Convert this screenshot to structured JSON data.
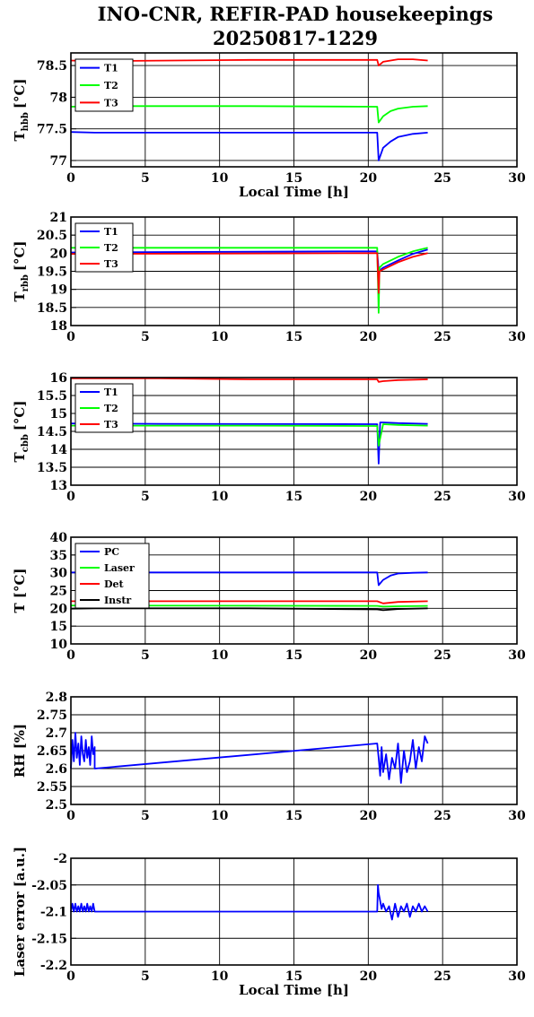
{
  "title_line1": "INO-CNR, REFIR-PAD housekeepings",
  "title_line2": "20250817-1229",
  "chart_data": [
    {
      "type": "line",
      "ylabel_main": "T",
      "ylabel_sub": "hbb",
      "ylabel_unit": "[°C]",
      "xlabel": "Local Time [h]",
      "xlim": [
        0,
        30
      ],
      "ylim": [
        76.9,
        78.7
      ],
      "yticks": [
        77,
        77.5,
        78,
        78.5
      ],
      "ytick_labels": [
        "77",
        "77.5",
        "78",
        "78.5"
      ],
      "xticks": [
        0,
        5,
        10,
        15,
        20,
        25,
        30
      ],
      "legend_position": "top-left",
      "series": [
        {
          "name": "T1",
          "color": "#0000ff",
          "x": [
            0,
            1.6,
            20.6,
            20.7,
            21.0,
            21.5,
            22.0,
            23.0,
            24.0
          ],
          "y": [
            77.45,
            77.44,
            77.44,
            77.0,
            77.2,
            77.3,
            77.37,
            77.42,
            77.44
          ]
        },
        {
          "name": "T2",
          "color": "#00ff00",
          "x": [
            0,
            1.6,
            12.0,
            20.6,
            20.7,
            21.0,
            21.5,
            22.0,
            23.0,
            24.0
          ],
          "y": [
            77.85,
            77.86,
            77.86,
            77.85,
            77.6,
            77.7,
            77.78,
            77.82,
            77.85,
            77.86
          ]
        },
        {
          "name": "T3",
          "color": "#ff0000",
          "x": [
            0,
            1.6,
            12.0,
            20.6,
            20.7,
            21.0,
            22.0,
            23.0,
            24.0
          ],
          "y": [
            78.58,
            78.57,
            78.59,
            78.59,
            78.5,
            78.56,
            78.6,
            78.6,
            78.58
          ]
        }
      ]
    },
    {
      "type": "line",
      "ylabel_main": "T",
      "ylabel_sub": "rbb",
      "ylabel_unit": "[°C]",
      "xlim": [
        0,
        30
      ],
      "ylim": [
        18,
        21
      ],
      "yticks": [
        18,
        18.5,
        19,
        19.5,
        20,
        20.5,
        21
      ],
      "ytick_labels": [
        "18",
        "18.5",
        "19",
        "19.5",
        "20",
        "20.5",
        "21"
      ],
      "xticks": [
        0,
        5,
        10,
        15,
        20,
        25,
        30
      ],
      "legend_position": "top-left",
      "series": [
        {
          "name": "T1",
          "color": "#0000ff",
          "x": [
            0,
            18.0,
            20.6,
            20.7,
            21.0,
            22.0,
            23.0,
            24.0
          ],
          "y": [
            20.02,
            20.05,
            20.05,
            19.5,
            19.6,
            19.8,
            19.98,
            20.1
          ]
        },
        {
          "name": "T2",
          "color": "#00ff00",
          "x": [
            0,
            20.6,
            20.7,
            20.75,
            21.0,
            22.0,
            23.0,
            24.0
          ],
          "y": [
            20.15,
            20.15,
            18.35,
            19.6,
            19.7,
            19.9,
            20.05,
            20.15
          ]
        },
        {
          "name": "T3",
          "color": "#ff0000",
          "x": [
            0,
            20.6,
            20.7,
            20.75,
            21.0,
            22.0,
            23.0,
            24.0
          ],
          "y": [
            19.98,
            20.0,
            18.9,
            19.5,
            19.55,
            19.75,
            19.9,
            20.0
          ]
        }
      ]
    },
    {
      "type": "line",
      "ylabel_main": "T",
      "ylabel_sub": "cbb",
      "ylabel_unit": "[°C]",
      "xlim": [
        0,
        30
      ],
      "ylim": [
        13,
        16
      ],
      "yticks": [
        13,
        13.5,
        14,
        14.5,
        15,
        15.5,
        16
      ],
      "ytick_labels": [
        "13",
        "13.5",
        "14",
        "14.5",
        "15",
        "15.5",
        "16"
      ],
      "xticks": [
        0,
        5,
        10,
        15,
        20,
        25,
        30
      ],
      "legend_position": "top-left",
      "series": [
        {
          "name": "T1",
          "color": "#0000ff",
          "x": [
            0,
            6.0,
            20.6,
            20.7,
            20.8,
            21.0,
            22.0,
            24.0
          ],
          "y": [
            14.72,
            14.71,
            14.7,
            13.6,
            14.75,
            14.75,
            14.73,
            14.71
          ]
        },
        {
          "name": "T2",
          "color": "#00ff00",
          "x": [
            0,
            12.0,
            20.6,
            20.7,
            21.0,
            22.0,
            24.0
          ],
          "y": [
            14.66,
            14.66,
            14.65,
            14.1,
            14.7,
            14.68,
            14.66
          ]
        },
        {
          "name": "T3",
          "color": "#ff0000",
          "x": [
            0,
            6.0,
            12.0,
            20.6,
            20.7,
            21.0,
            22.0,
            24.0
          ],
          "y": [
            15.98,
            15.98,
            15.95,
            15.95,
            15.88,
            15.9,
            15.93,
            15.95
          ]
        }
      ]
    },
    {
      "type": "line",
      "ylabel_main": "T [°C]",
      "xlim": [
        0,
        30
      ],
      "ylim": [
        10,
        40
      ],
      "yticks": [
        10,
        15,
        20,
        25,
        30,
        35,
        40
      ],
      "ytick_labels": [
        "10",
        "15",
        "20",
        "25",
        "30",
        "35",
        "40"
      ],
      "xticks": [
        0,
        5,
        10,
        15,
        20,
        25,
        30
      ],
      "legend_position": "top-left",
      "series": [
        {
          "name": "PC",
          "color": "#0000ff",
          "x": [
            0,
            20.6,
            20.7,
            21.0,
            21.5,
            22.0,
            23.0,
            24.0
          ],
          "y": [
            30.1,
            30.1,
            26.5,
            28.0,
            29.2,
            29.8,
            30.0,
            30.1
          ]
        },
        {
          "name": "Laser",
          "color": "#00ff00",
          "x": [
            0,
            20.6,
            21.0,
            22.0,
            24.0
          ],
          "y": [
            20.8,
            20.7,
            20.5,
            20.6,
            20.7
          ]
        },
        {
          "name": "Det",
          "color": "#ff0000",
          "x": [
            0,
            20.6,
            21.0,
            22.0,
            24.0
          ],
          "y": [
            22.0,
            22.0,
            21.4,
            21.8,
            22.0
          ]
        },
        {
          "name": "Instr",
          "color": "#000000",
          "x": [
            0,
            1.6,
            12.0,
            20.6,
            21.0,
            22.0,
            24.0
          ],
          "y": [
            19.9,
            20.0,
            20.0,
            19.7,
            19.5,
            19.8,
            20.0
          ]
        }
      ]
    },
    {
      "type": "line",
      "ylabel_main": "RH [%]",
      "xlim": [
        0,
        30
      ],
      "ylim": [
        2.5,
        2.8
      ],
      "yticks": [
        2.5,
        2.55,
        2.6,
        2.65,
        2.7,
        2.75,
        2.8
      ],
      "ytick_labels": [
        "2.5",
        "2.55",
        "2.6",
        "2.65",
        "2.7",
        "2.75",
        "2.8"
      ],
      "xticks": [
        0,
        5,
        10,
        15,
        20,
        25,
        30
      ],
      "series": [
        {
          "name": "",
          "color": "#0000ff",
          "x": [
            0,
            0.1,
            0.2,
            0.3,
            0.4,
            0.5,
            0.6,
            0.7,
            0.8,
            0.9,
            1.0,
            1.1,
            1.2,
            1.3,
            1.4,
            1.5,
            1.6,
            1.6,
            20.6,
            20.7,
            20.8,
            20.9,
            21.0,
            21.2,
            21.4,
            21.6,
            21.8,
            22.0,
            22.2,
            22.4,
            22.6,
            22.8,
            23.0,
            23.2,
            23.4,
            23.6,
            23.8,
            24.0
          ],
          "y": [
            2.6,
            2.68,
            2.62,
            2.7,
            2.63,
            2.67,
            2.61,
            2.69,
            2.64,
            2.62,
            2.68,
            2.63,
            2.66,
            2.61,
            2.69,
            2.64,
            2.66,
            2.6,
            2.67,
            2.63,
            2.58,
            2.66,
            2.59,
            2.64,
            2.57,
            2.63,
            2.6,
            2.67,
            2.56,
            2.65,
            2.59,
            2.62,
            2.68,
            2.6,
            2.66,
            2.62,
            2.69,
            2.67
          ]
        }
      ]
    },
    {
      "type": "line",
      "ylabel_main": "Laser error [a.u.]",
      "xlabel": "Local Time [h]",
      "xlim": [
        0,
        30
      ],
      "ylim": [
        -2.2,
        -2.0
      ],
      "yticks": [
        -2.2,
        -2.15,
        -2.1,
        -2.05,
        -2
      ],
      "ytick_labels": [
        "-2.2",
        "-2.15",
        "-2.1",
        "-2.05",
        "-2"
      ],
      "xticks": [
        0,
        5,
        10,
        15,
        20,
        25,
        30
      ],
      "series": [
        {
          "name": "",
          "color": "#0000ff",
          "x": [
            0,
            0.1,
            0.2,
            0.3,
            0.4,
            0.5,
            0.6,
            0.7,
            0.8,
            0.9,
            1.0,
            1.1,
            1.2,
            1.3,
            1.4,
            1.5,
            1.6,
            12.0,
            20.6,
            20.65,
            20.7,
            20.8,
            20.9,
            21.0,
            21.2,
            21.4,
            21.6,
            21.8,
            22.0,
            22.2,
            22.4,
            22.6,
            22.8,
            23.0,
            23.2,
            23.4,
            23.6,
            23.8,
            24.0
          ],
          "y": [
            -2.1,
            -2.085,
            -2.1,
            -2.085,
            -2.1,
            -2.09,
            -2.1,
            -2.085,
            -2.1,
            -2.09,
            -2.1,
            -2.085,
            -2.1,
            -2.09,
            -2.1,
            -2.085,
            -2.1,
            -2.1,
            -2.1,
            -2.05,
            -2.065,
            -2.08,
            -2.095,
            -2.085,
            -2.1,
            -2.09,
            -2.115,
            -2.085,
            -2.11,
            -2.09,
            -2.1,
            -2.085,
            -2.11,
            -2.09,
            -2.1,
            -2.085,
            -2.1,
            -2.09,
            -2.1
          ]
        }
      ]
    }
  ]
}
